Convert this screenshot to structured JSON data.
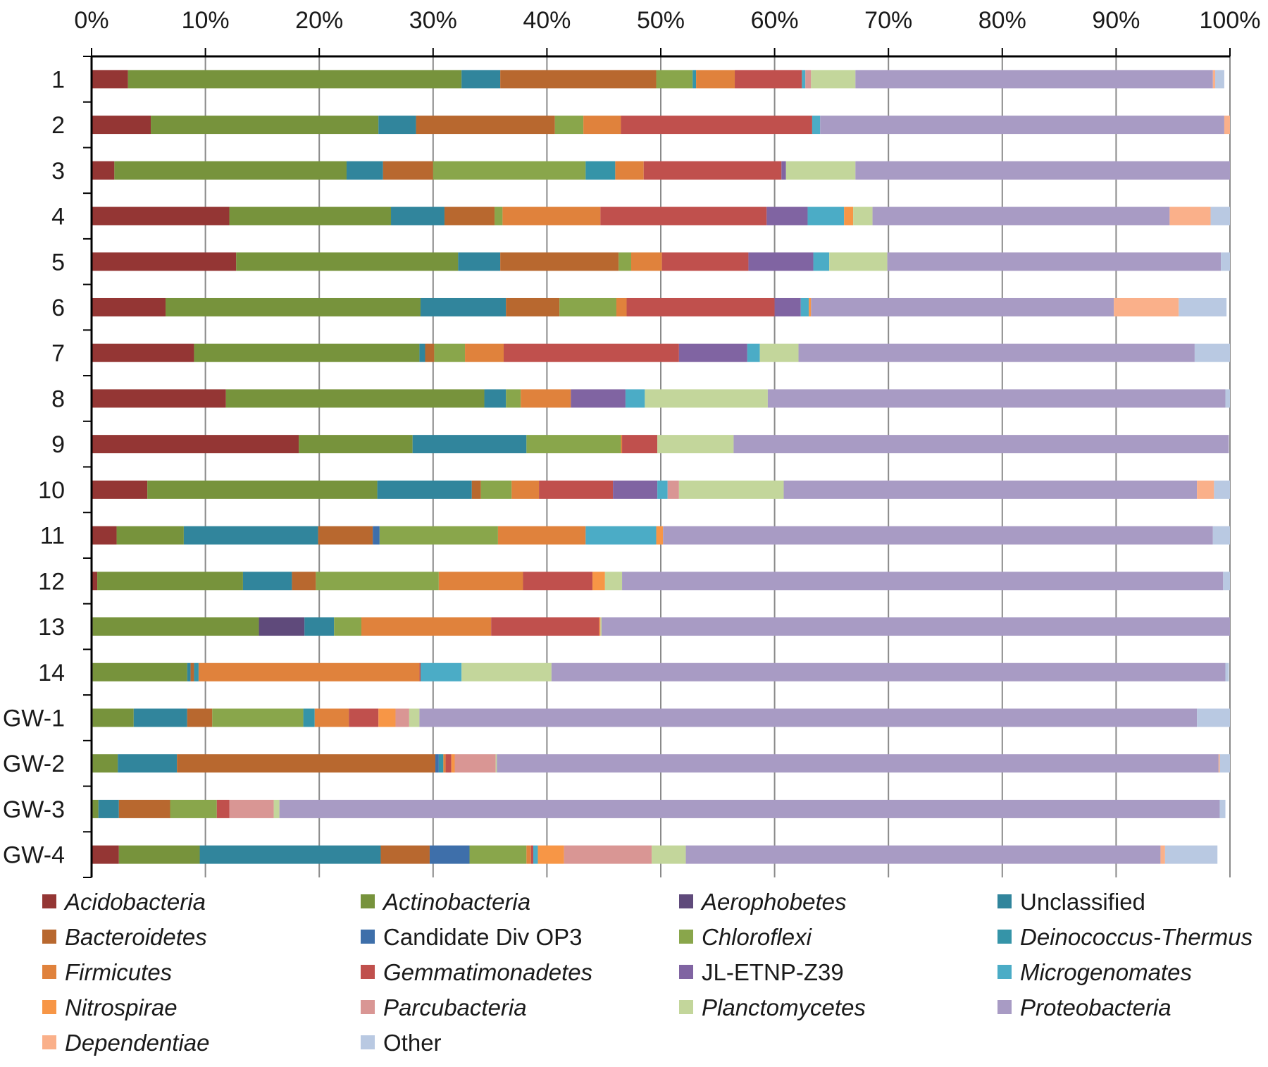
{
  "chart_data": {
    "type": "bar",
    "orientation": "horizontal",
    "stacked": true,
    "title": "",
    "xlabel": "",
    "ylabel": "",
    "xlim": [
      0,
      100
    ],
    "x_ticks": [
      "0%",
      "10%",
      "20%",
      "30%",
      "40%",
      "50%",
      "60%",
      "70%",
      "80%",
      "90%",
      "100%"
    ],
    "grid": true,
    "legend_position": "bottom",
    "categories": [
      "1",
      "2",
      "3",
      "4",
      "5",
      "6",
      "7",
      "8",
      "9",
      "10",
      "11",
      "12",
      "13",
      "14",
      "GW-1",
      "GW-2",
      "GW-3",
      "GW-4"
    ],
    "series": [
      {
        "name": "Acidobacteria",
        "italic": true,
        "color": "#943634",
        "values": [
          3.2,
          5.2,
          2.0,
          12.1,
          12.7,
          6.5,
          9.0,
          11.8,
          18.2,
          4.9,
          2.2,
          0.5,
          0.1,
          0.1,
          0.1,
          0.1,
          0.1,
          2.4
        ]
      },
      {
        "name": "Actinobacteria",
        "italic": true,
        "color": "#77933c",
        "values": [
          29.3,
          20.0,
          20.4,
          14.2,
          19.5,
          22.4,
          19.8,
          22.7,
          10.0,
          20.2,
          5.9,
          12.8,
          14.6,
          8.3,
          3.6,
          2.2,
          0.5,
          7.1
        ]
      },
      {
        "name": "Aerophobetes",
        "italic": true,
        "color": "#5f4a7b",
        "values": [
          0,
          0,
          0,
          0,
          0,
          0,
          0,
          0,
          0,
          0,
          0,
          0,
          4.0,
          0,
          0,
          0,
          0,
          0
        ]
      },
      {
        "name": "Unclassified",
        "italic": false,
        "color": "#31859c",
        "values": [
          3.4,
          3.3,
          3.2,
          4.7,
          3.7,
          7.5,
          0.5,
          1.9,
          10.0,
          8.3,
          11.8,
          4.3,
          2.6,
          0.3,
          4.7,
          5.2,
          1.8,
          15.9
        ]
      },
      {
        "name": "Bacteroidetes",
        "italic": true,
        "color": "#b8682f",
        "values": [
          13.7,
          12.2,
          4.4,
          4.4,
          10.4,
          4.7,
          0.8,
          0,
          0,
          0.8,
          4.8,
          2.1,
          0,
          0.3,
          2.2,
          22.7,
          4.5,
          4.3
        ]
      },
      {
        "name": "Candidate Div OP3",
        "italic": false,
        "color": "#3e6faa",
        "values": [
          0,
          0,
          0,
          0,
          0,
          0,
          0,
          0,
          0,
          0,
          0.6,
          0,
          0,
          0,
          0,
          0.3,
          0,
          3.5
        ]
      },
      {
        "name": "Chloroflexi",
        "italic": true,
        "color": "#89a64b",
        "values": [
          3.2,
          2.5,
          13.4,
          0.7,
          1.1,
          5.0,
          2.7,
          1.3,
          8.3,
          2.7,
          10.4,
          10.8,
          2.4,
          0,
          8.0,
          0,
          4.1,
          5.0
        ]
      },
      {
        "name": "Deinococcus-Thermus",
        "italic": true,
        "color": "#3594a8",
        "values": [
          0.3,
          0,
          2.6,
          0,
          0,
          0,
          0,
          0,
          0,
          0,
          0,
          0,
          0,
          0.4,
          1.0,
          0.4,
          0,
          0
        ]
      },
      {
        "name": "Firmicutes",
        "italic": true,
        "color": "#e0823c",
        "values": [
          3.4,
          3.3,
          2.5,
          8.6,
          2.7,
          0.9,
          3.4,
          4.4,
          0.1,
          2.4,
          7.7,
          7.4,
          11.4,
          19.4,
          3.0,
          0.2,
          0,
          0.4
        ]
      },
      {
        "name": "Gemmatimonadetes",
        "italic": true,
        "color": "#c0504d",
        "values": [
          5.9,
          16.8,
          12.1,
          14.6,
          7.6,
          13.0,
          15.4,
          0,
          3.1,
          6.5,
          0,
          6.1,
          9.5,
          0.1,
          2.6,
          0.5,
          1.1,
          0.2
        ]
      },
      {
        "name": "JL-ETNP-Z39",
        "italic": false,
        "color": "#8064a2",
        "values": [
          0,
          0,
          0.4,
          3.6,
          5.7,
          2.3,
          6.0,
          4.8,
          0,
          3.9,
          0,
          0,
          0,
          0,
          0,
          0,
          0,
          0
        ]
      },
      {
        "name": "Microgenomates",
        "italic": true,
        "color": "#4bacc6",
        "values": [
          0.3,
          0.7,
          0,
          3.2,
          1.4,
          0.7,
          1.1,
          1.7,
          0,
          0.9,
          6.2,
          0,
          0,
          3.6,
          0,
          0,
          0,
          0.4
        ]
      },
      {
        "name": "Nitrospirae",
        "italic": true,
        "color": "#f79646",
        "values": [
          0,
          0,
          0,
          0.8,
          0,
          0.2,
          0,
          0,
          0,
          0,
          0.6,
          1.1,
          0.1,
          0,
          1.5,
          0.3,
          0,
          2.3
        ]
      },
      {
        "name": "Parcubacteria",
        "italic": true,
        "color": "#d99694",
        "values": [
          0.5,
          0,
          0,
          0,
          0,
          0,
          0,
          0,
          0,
          1.0,
          0,
          0,
          0,
          0,
          1.2,
          3.6,
          3.9,
          7.7
        ]
      },
      {
        "name": "Planctomycetes",
        "italic": true,
        "color": "#c3d69b",
        "values": [
          3.9,
          0,
          6.1,
          1.7,
          5.1,
          0,
          3.4,
          10.8,
          6.7,
          9.2,
          0,
          1.5,
          0.1,
          7.9,
          0.9,
          0.1,
          0.5,
          3.0
        ]
      },
      {
        "name": "Proteobacteria",
        "italic": true,
        "color": "#a89bc4",
        "values": [
          31.4,
          35.5,
          33.0,
          26.1,
          29.3,
          26.6,
          34.8,
          40.2,
          43.5,
          36.3,
          48.3,
          52.8,
          55.3,
          59.2,
          68.3,
          63.4,
          82.6,
          41.7
        ]
      },
      {
        "name": "Dependentiae",
        "italic": true,
        "color": "#fab08a",
        "values": [
          0.2,
          0.6,
          0,
          3.6,
          0,
          5.7,
          0,
          0,
          0,
          1.5,
          0,
          0,
          0,
          0,
          0,
          0.1,
          0,
          0.4
        ]
      },
      {
        "name": "Other",
        "italic": false,
        "color": "#b9c9e2",
        "values": [
          0.8,
          0,
          0,
          1.8,
          1.0,
          4.2,
          3.2,
          0.5,
          0,
          1.4,
          1.7,
          0.6,
          0,
          0.3,
          2.9,
          1.3,
          0.5,
          4.6
        ]
      }
    ]
  }
}
